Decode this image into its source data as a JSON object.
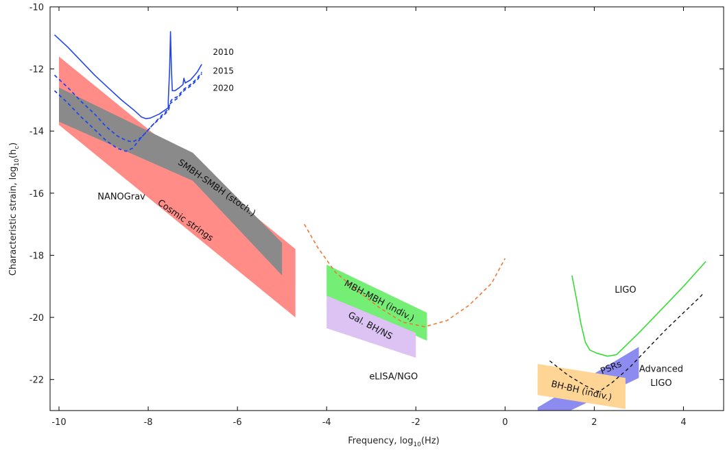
{
  "chart_data": {
    "type": "area",
    "xlabel": "Frequency, log10(Hz)",
    "ylabel": "Characteristic strain, log10(hc)",
    "xlim": [
      -10.2,
      4.9
    ],
    "ylim": [
      -23,
      -10
    ],
    "xticks": [
      -10,
      -8,
      -6,
      -4,
      -2,
      0,
      2,
      4
    ],
    "yticks": [
      -10,
      -12,
      -14,
      -16,
      -18,
      -20,
      -22
    ],
    "xtick_labels": [
      "-10",
      "-8",
      "-6",
      "-4",
      "-2",
      "0",
      "2",
      "4"
    ],
    "ytick_labels": [
      "-10",
      "-12",
      "-14",
      "-16",
      "-18",
      "-20",
      "-22"
    ],
    "colors": {
      "cosmic_strings": "#ff8c87",
      "smbh": "#8a8a8a",
      "mbh": "#74ee74",
      "gal": "#dcc3f4",
      "bhbh": "#ffd596",
      "psr": "#8c8cf0",
      "pta": "#2244ee",
      "elisa": "#ee7733",
      "ligo": "#33dd33",
      "aligo": "#111111"
    },
    "regions": [
      {
        "key": "cosmic_strings",
        "polygon": [
          [
            -10,
            -11.6
          ],
          [
            -4.7,
            -17.8
          ],
          [
            -4.7,
            -20
          ],
          [
            -10,
            -13.8
          ]
        ]
      },
      {
        "key": "smbh",
        "polygon": [
          [
            -10,
            -12.6
          ],
          [
            -7,
            -14.7
          ],
          [
            -5,
            -17.6
          ],
          [
            -5,
            -18.65
          ],
          [
            -7,
            -15.6
          ],
          [
            -10,
            -13.7
          ]
        ]
      },
      {
        "key": "mbh",
        "polygon": [
          [
            -4,
            -18.3
          ],
          [
            -1.75,
            -19.85
          ],
          [
            -1.75,
            -20.75
          ],
          [
            -4,
            -19.3
          ]
        ]
      },
      {
        "key": "gal",
        "polygon": [
          [
            -4,
            -19.3
          ],
          [
            -2,
            -20.5
          ],
          [
            -2,
            -21.3
          ],
          [
            -4,
            -20.35
          ]
        ]
      },
      {
        "key": "psr",
        "polygon": [
          [
            0.73,
            -22.9
          ],
          [
            3,
            -20.95
          ],
          [
            3,
            -21.95
          ],
          [
            0.73,
            -23.5
          ]
        ]
      },
      {
        "key": "bhbh",
        "polygon": [
          [
            0.73,
            -21.5
          ],
          [
            2.7,
            -21.95
          ],
          [
            2.7,
            -22.95
          ],
          [
            0.73,
            -22.5
          ]
        ]
      }
    ],
    "curves": [
      {
        "key": "pta",
        "dash": false,
        "width": 1.6,
        "points": [
          [
            -10.1,
            -10.9
          ],
          [
            -9.8,
            -11.3
          ],
          [
            -9.5,
            -11.75
          ],
          [
            -9.2,
            -12.2
          ],
          [
            -8.9,
            -12.6
          ],
          [
            -8.6,
            -13.0
          ],
          [
            -8.3,
            -13.35
          ],
          [
            -8.15,
            -13.55
          ],
          [
            -8.05,
            -13.6
          ],
          [
            -7.95,
            -13.58
          ],
          [
            -7.75,
            -13.45
          ],
          [
            -7.55,
            -13.25
          ],
          [
            -7.55,
            -13.05
          ],
          [
            -7.52,
            -12.0
          ],
          [
            -7.5,
            -10.8
          ],
          [
            -7.48,
            -12.0
          ],
          [
            -7.46,
            -12.7
          ],
          [
            -7.4,
            -12.7
          ],
          [
            -7.3,
            -12.6
          ],
          [
            -7.22,
            -12.5
          ],
          [
            -7.2,
            -12.3
          ],
          [
            -7.17,
            -12.45
          ],
          [
            -7.05,
            -12.35
          ],
          [
            -6.9,
            -12.1
          ],
          [
            -6.8,
            -11.85
          ]
        ]
      },
      {
        "key": "pta",
        "dash": true,
        "width": 1.8,
        "points": [
          [
            -10.1,
            -12.2
          ],
          [
            -9.8,
            -12.6
          ],
          [
            -9.5,
            -13.05
          ],
          [
            -9.2,
            -13.45
          ],
          [
            -8.95,
            -13.85
          ],
          [
            -8.7,
            -14.15
          ],
          [
            -8.5,
            -14.3
          ],
          [
            -8.35,
            -14.35
          ],
          [
            -8.15,
            -14.2
          ],
          [
            -7.9,
            -13.8
          ],
          [
            -7.7,
            -13.5
          ],
          [
            -7.55,
            -13.3
          ],
          [
            -7.5,
            -13.05
          ],
          [
            -7.45,
            -12.95
          ],
          [
            -7.35,
            -12.9
          ],
          [
            -7.2,
            -12.65
          ],
          [
            -7.05,
            -12.5
          ],
          [
            -6.9,
            -12.3
          ],
          [
            -6.8,
            -12.1
          ]
        ]
      },
      {
        "key": "pta",
        "dash": true,
        "width": 1.8,
        "points": [
          [
            -10.1,
            -12.7
          ],
          [
            -9.8,
            -13.1
          ],
          [
            -9.5,
            -13.55
          ],
          [
            -9.2,
            -13.95
          ],
          [
            -8.95,
            -14.3
          ],
          [
            -8.7,
            -14.55
          ],
          [
            -8.5,
            -14.65
          ],
          [
            -8.35,
            -14.55
          ],
          [
            -8.15,
            -14.2
          ],
          [
            -7.9,
            -13.8
          ],
          [
            -7.7,
            -13.55
          ],
          [
            -7.55,
            -13.35
          ],
          [
            -7.5,
            -13.1
          ],
          [
            -7.45,
            -13.05
          ],
          [
            -7.35,
            -12.95
          ],
          [
            -7.2,
            -12.7
          ],
          [
            -7.05,
            -12.55
          ],
          [
            -6.9,
            -12.35
          ],
          [
            -6.8,
            -12.15
          ]
        ]
      },
      {
        "key": "elisa",
        "dash": true,
        "width": 1.6,
        "points": [
          [
            -4.5,
            -17.0
          ],
          [
            -4.2,
            -17.75
          ],
          [
            -3.8,
            -18.55
          ],
          [
            -3.3,
            -19.15
          ],
          [
            -2.8,
            -19.7
          ],
          [
            -2.3,
            -20.15
          ],
          [
            -1.8,
            -20.3
          ],
          [
            -1.3,
            -20.1
          ],
          [
            -0.8,
            -19.6
          ],
          [
            -0.3,
            -18.9
          ],
          [
            0,
            -18.1
          ]
        ]
      },
      {
        "key": "ligo",
        "dash": false,
        "width": 1.6,
        "points": [
          [
            1.5,
            -18.65
          ],
          [
            1.6,
            -19.4
          ],
          [
            1.7,
            -20.2
          ],
          [
            1.8,
            -20.8
          ],
          [
            1.9,
            -21.05
          ],
          [
            2.05,
            -21.15
          ],
          [
            2.3,
            -21.25
          ],
          [
            2.5,
            -21.2
          ],
          [
            3,
            -20.5
          ],
          [
            3.5,
            -19.75
          ],
          [
            4,
            -19.0
          ],
          [
            4.5,
            -18.2
          ]
        ]
      },
      {
        "key": "aligo",
        "dash": true,
        "width": 1.4,
        "points": [
          [
            1,
            -21.4
          ],
          [
            1.4,
            -21.85
          ],
          [
            1.8,
            -22.2
          ],
          [
            2.1,
            -22.4
          ],
          [
            2.4,
            -22.1
          ],
          [
            2.8,
            -21.6
          ],
          [
            3.2,
            -21.0
          ],
          [
            3.6,
            -20.4
          ],
          [
            4,
            -19.85
          ],
          [
            4.4,
            -19.3
          ],
          [
            4.45,
            -19.2
          ]
        ]
      }
    ],
    "annotations": [
      {
        "key": "y2010",
        "text": "2010",
        "x": -6.55,
        "y": -11.55,
        "angle": 0,
        "size": "sm"
      },
      {
        "key": "y2015",
        "text": "2015",
        "x": -6.55,
        "y": -12.15,
        "angle": 0,
        "size": "sm"
      },
      {
        "key": "y2020",
        "text": "2020",
        "x": -6.55,
        "y": -12.7,
        "angle": 0,
        "size": "sm"
      },
      {
        "key": "nanograv",
        "text": "NANOGrav",
        "x": -8.6,
        "y": -16.2,
        "angle": 0,
        "size": "md"
      },
      {
        "key": "smbh",
        "text": "SMBH-SMBH (stoch.)",
        "x": -6.5,
        "y": -15.9,
        "angle": 35,
        "size": "md"
      },
      {
        "key": "cosmic",
        "text": "Cosmic strings",
        "x": -7.2,
        "y": -16.95,
        "angle": 35,
        "size": "md"
      },
      {
        "key": "mbh",
        "text": "MBH-MBH (indiv.)",
        "x": -2.85,
        "y": -19.55,
        "angle": 28,
        "size": "md"
      },
      {
        "key": "gal",
        "text": "Gal. BH/NS",
        "x": -3.05,
        "y": -20.35,
        "angle": 28,
        "size": "md"
      },
      {
        "key": "elisa",
        "text": "eLISA/NGO",
        "x": -2.5,
        "y": -22.0,
        "angle": 0,
        "size": "md"
      },
      {
        "key": "ligo",
        "text": "LIGO",
        "x": 2.7,
        "y": -19.2,
        "angle": 0,
        "size": "md"
      },
      {
        "key": "aligo1",
        "text": "Advanced",
        "x": 3.5,
        "y": -21.75,
        "angle": 0,
        "size": "md"
      },
      {
        "key": "aligo2",
        "text": "LIGO",
        "x": 3.5,
        "y": -22.2,
        "angle": 0,
        "size": "md"
      },
      {
        "key": "psr",
        "text": "PSRs",
        "x": 2.4,
        "y": -21.7,
        "angle": -22,
        "size": "md"
      },
      {
        "key": "bhbh",
        "text": "BH-BH (indiv.)",
        "x": 1.7,
        "y": -22.45,
        "angle": 13,
        "size": "md"
      }
    ]
  }
}
